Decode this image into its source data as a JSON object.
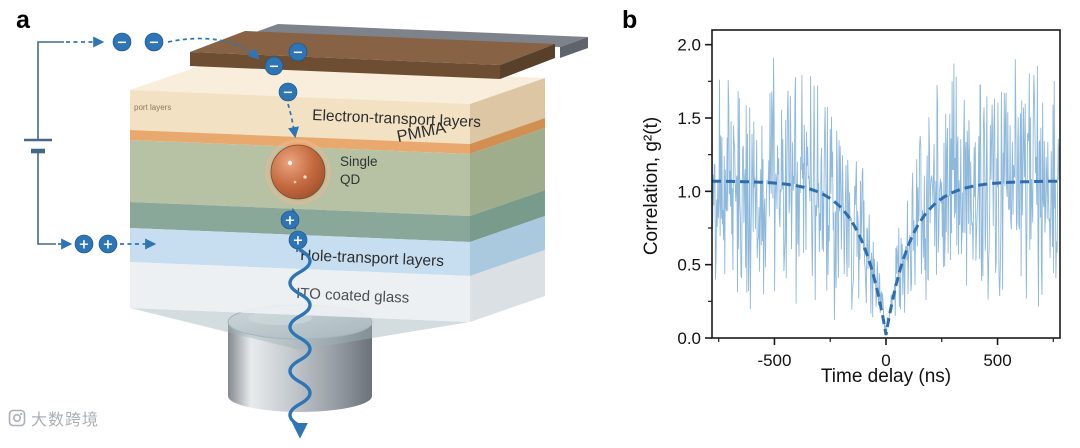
{
  "figure": {
    "panel_a_label": "a",
    "panel_b_label": "b",
    "watermark_text": "大数跨境"
  },
  "device": {
    "labels": {
      "electron_transport": "Electron-transport layers",
      "pmma": "PMMA",
      "single_qd_line1": "Single",
      "single_qd_line2": "QD",
      "hole_transport": "Hole-transport layers",
      "ito_glass": "ITO coated glass",
      "side_partial": "port layers"
    },
    "carriers": {
      "electron_symbol": "−",
      "hole_symbol": "+",
      "color": "#2e75b6"
    },
    "colors": {
      "electrode_brown": "#6e4e33",
      "etl_cream": "#f3e1c4",
      "etl_orange": "#e9a96e",
      "pmma_green": "#b7c2a4",
      "interlayer_teal": "#8aa89a",
      "htl_blue": "#c6def0",
      "ito_glass": "#eceff2",
      "qd_orange": "#c4693f"
    }
  },
  "chart_data": {
    "type": "line",
    "title": "",
    "xlabel": "Time delay (ns)",
    "ylabel": "Correlation, g²(t)",
    "xlim": [
      -780,
      780
    ],
    "ylim": [
      0,
      2.1
    ],
    "xticks": [
      -500,
      0,
      500
    ],
    "xticks_minor": [
      -750,
      -250,
      250,
      750
    ],
    "yticks": [
      0,
      0.5,
      1,
      1.5,
      2
    ],
    "yticks_minor": [
      0.25,
      0.75,
      1.25,
      1.75
    ],
    "grid": false,
    "legend": null,
    "series": [
      {
        "name": "measured photon correlation (noisy trace, antibunching dip to ~0 at t=0)",
        "style": "solid-noisy",
        "color": "#8fb9dc",
        "baseline": 1.05,
        "noise_amplitude": 0.48,
        "dip_min": 0.03,
        "dip_tau_ns": 105,
        "points_step_ns": 2.6
      },
      {
        "name": "exponential fit g²(t)=1.07·(1−0.98·exp(−|t|/115ns))",
        "style": "dashed",
        "color": "#2d6fae",
        "baseline": 1.07,
        "dip_min": 0.02,
        "dip_tau_ns": 115
      }
    ]
  }
}
